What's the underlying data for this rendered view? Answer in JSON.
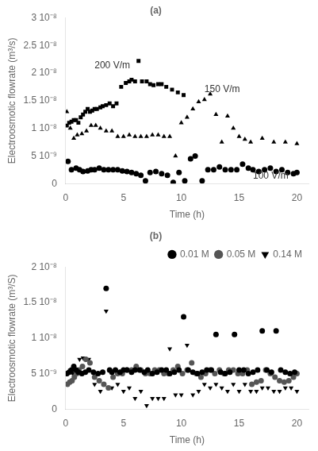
{
  "chart_data": [
    {
      "type": "scatter",
      "title": "(a)",
      "x_label": "Time (h)",
      "y_label": "Electroosmotic flowrate (m³/s)",
      "xlim": [
        0,
        21
      ],
      "xticks": [
        0,
        5,
        10,
        15,
        20
      ],
      "ylim": [
        0,
        3e-08
      ],
      "yticks": [
        0,
        {
          "value": 5e-09,
          "label": "5 10⁻⁹"
        },
        {
          "value": 1e-08,
          "label": "1 10⁻⁸"
        },
        {
          "value": 1.5e-08,
          "label": "1.5 10⁻⁸"
        },
        {
          "value": 2e-08,
          "label": "2 10⁻⁸"
        },
        {
          "value": 2.5e-08,
          "label": "2.5 10⁻⁸"
        },
        {
          "value": 3e-08,
          "label": "3 10⁻⁸"
        }
      ],
      "grid": false,
      "series": [
        {
          "marker": "square",
          "color": "#000000",
          "x": [
            0.1,
            0.3,
            0.5,
            0.7,
            0.9,
            1.1,
            1.3,
            1.5,
            1.7,
            1.9,
            2.1,
            2.3,
            2.5,
            2.7,
            3.0,
            3.2,
            3.5,
            3.8,
            4.1,
            4.4,
            4.8,
            5.2,
            5.5,
            5.7,
            6.0,
            6.3,
            6.6,
            7.0,
            7.3,
            7.6,
            8.0,
            8.3,
            8.7,
            9.2,
            9.7,
            10.2
          ],
          "values": [
            1.05e-08,
            1.1e-08,
            1.12e-08,
            1.15e-08,
            1.15e-08,
            1.1e-08,
            1.2e-08,
            1.25e-08,
            1.3e-08,
            1.35e-08,
            1.3e-08,
            1.32e-08,
            1.35e-08,
            1.35e-08,
            1.38e-08,
            1.4e-08,
            1.42e-08,
            1.45e-08,
            1.4e-08,
            1.45e-08,
            1.75e-08,
            1.82e-08,
            1.85e-08,
            1.88e-08,
            1.85e-08,
            2.22e-08,
            1.85e-08,
            1.85e-08,
            1.8e-08,
            1.78e-08,
            1.8e-08,
            1.8e-08,
            1.75e-08,
            1.7e-08,
            1.65e-08,
            1.6e-08
          ]
        },
        {
          "marker": "triangle_up",
          "color": "#000000",
          "x": [
            0.1,
            0.4,
            0.7,
            1.0,
            1.4,
            1.8,
            2.2,
            2.6,
            3.0,
            3.5,
            4.0,
            4.5,
            5.0,
            5.5,
            6.0,
            6.5,
            7.0,
            7.5,
            8.0,
            8.5,
            9.0,
            9.5,
            10.0,
            10.5,
            11.0,
            11.5,
            12.0,
            12.5,
            13.0,
            13.5,
            14.0,
            14.5,
            15.0,
            15.5,
            16.0,
            17.0,
            18.0,
            19.0,
            20.0
          ],
          "values": [
            1.3e-08,
            1e-08,
            8.2e-09,
            8.8e-09,
            9e-09,
            9.5e-09,
            1.05e-08,
            1.05e-08,
            1e-08,
            9.5e-09,
            9.5e-09,
            8.5e-09,
            8.5e-09,
            8.8e-09,
            8.5e-09,
            8.5e-09,
            8.5e-09,
            8.8e-09,
            8.8e-09,
            8.5e-09,
            8.5e-09,
            5e-09,
            1.1e-08,
            1.2e-08,
            1.35e-08,
            1.48e-08,
            1.52e-08,
            1.62e-08,
            1.25e-08,
            7.5e-09,
            1.22e-08,
            1e-08,
            8.5e-09,
            8e-09,
            7.5e-09,
            8.2e-09,
            7.5e-09,
            7.5e-09,
            7.2e-09
          ]
        },
        {
          "marker": "circle",
          "color": "#000000",
          "x": [
            0.2,
            0.5,
            0.9,
            1.2,
            1.5,
            1.9,
            2.2,
            2.5,
            2.9,
            3.3,
            3.7,
            4.1,
            4.5,
            4.9,
            5.3,
            5.7,
            6.1,
            6.5,
            6.9,
            7.3,
            7.8,
            8.3,
            8.8,
            9.3,
            9.8,
            10.3,
            10.8,
            11.2,
            11.8,
            12.3,
            12.8,
            13.3,
            13.8,
            14.3,
            14.8,
            15.3,
            15.8,
            16.2,
            16.7,
            17.2,
            17.7,
            18.2,
            18.7,
            19.2,
            19.7,
            20.0
          ],
          "values": [
            4e-09,
            2.5e-09,
            2.8e-09,
            2.5e-09,
            2.2e-09,
            2.3e-09,
            2.5e-09,
            2.5e-09,
            2.8e-09,
            2.5e-09,
            2.5e-09,
            2.5e-09,
            2.5e-09,
            2.3e-09,
            2.2e-09,
            2e-09,
            1.8e-09,
            1.5e-09,
            5e-10,
            2e-09,
            2.2e-09,
            1.8e-09,
            1.5e-09,
            2e-10,
            2e-09,
            5e-10,
            4.5e-09,
            5e-09,
            5e-10,
            2.5e-09,
            2.5e-09,
            3e-09,
            2.5e-09,
            2.5e-09,
            2.5e-09,
            3.5e-09,
            2.8e-09,
            2.5e-09,
            2.2e-09,
            2.5e-09,
            2.8e-09,
            2.2e-09,
            2.5e-09,
            2e-09,
            1.8e-09,
            2e-09
          ]
        }
      ],
      "annotations": [
        {
          "text": "200 V/m",
          "x": 2.5,
          "y": 2.05e-08
        },
        {
          "text": "150 V/m",
          "x": 12.0,
          "y": 1.62e-08
        },
        {
          "text": "100 V/m",
          "x": 16.2,
          "y": 4.5e-10
        }
      ]
    },
    {
      "type": "scatter",
      "title": "(b)",
      "x_label": "Time (h)",
      "y_label": "Electroosmotic flowrate (m³/S)",
      "xlim": [
        0,
        21
      ],
      "xticks": [
        0,
        5,
        10,
        15,
        20
      ],
      "ylim": [
        0,
        2e-08
      ],
      "yticks": [
        0,
        {
          "value": 5e-09,
          "label": "5 10⁻⁹"
        },
        {
          "value": 1e-08,
          "label": "1 10⁻⁸"
        },
        {
          "value": 1.5e-08,
          "label": "1.5 10⁻⁸"
        },
        {
          "value": 2e-08,
          "label": "2 10⁻⁸"
        }
      ],
      "grid": false,
      "legend": "upper right",
      "series": [
        {
          "name": "0.01 M",
          "marker": "circle",
          "color": "#000000",
          "x": [
            0.1,
            0.3,
            0.5,
            0.7,
            0.9,
            1.1,
            1.4,
            1.7,
            2.0,
            2.4,
            2.8,
            3.2,
            3.5,
            3.8,
            4.0,
            4.3,
            4.7,
            5.0,
            5.3,
            5.7,
            6.0,
            6.4,
            6.8,
            7.1,
            7.5,
            7.9,
            8.3,
            8.7,
            9.0,
            9.4,
            9.8,
            10.2,
            10.6,
            11.0,
            11.4,
            11.8,
            12.2,
            12.6,
            13.0,
            13.4,
            13.8,
            14.2,
            14.6,
            15.0,
            15.4,
            15.8,
            16.2,
            16.6,
            17.0,
            17.4,
            17.8,
            18.2,
            18.6,
            19.0,
            19.4,
            19.8
          ],
          "values": [
            5e-09,
            5.2e-09,
            5.5e-09,
            6e-09,
            5.5e-09,
            5.2e-09,
            5e-09,
            5.2e-09,
            5.5e-09,
            5.2e-09,
            5e-09,
            5.2e-09,
            1.7e-08,
            5.5e-09,
            5.2e-09,
            5.5e-09,
            5.2e-09,
            5.5e-09,
            5.5e-09,
            5.2e-09,
            5.5e-09,
            5.5e-09,
            5.2e-09,
            5.5e-09,
            5e-09,
            5.2e-09,
            5.5e-09,
            5.5e-09,
            5e-09,
            5.2e-09,
            5.5e-09,
            1.3e-08,
            5.5e-09,
            5.2e-09,
            5e-09,
            5.2e-09,
            5.5e-09,
            5.5e-09,
            1.05e-08,
            5.2e-09,
            5e-09,
            5.2e-09,
            1.05e-08,
            5.5e-09,
            5.5e-09,
            5e-09,
            5.2e-09,
            5.5e-09,
            1.1e-08,
            5.5e-09,
            5.2e-09,
            1.1e-08,
            5.5e-09,
            5.2e-09,
            5e-09,
            5.2e-09
          ]
        },
        {
          "name": "0.05 M",
          "marker": "circle",
          "color": "#555555",
          "x": [
            0.15,
            0.35,
            0.55,
            0.75,
            0.95,
            1.15,
            1.45,
            1.75,
            2.1,
            2.5,
            2.9,
            3.3,
            3.7,
            4.1,
            4.5,
            4.9,
            5.3,
            5.7,
            6.1,
            6.5,
            6.9,
            7.3,
            7.7,
            8.1,
            8.5,
            8.9,
            9.3,
            9.7,
            10.1,
            10.5,
            10.9,
            11.3,
            11.7,
            12.1,
            12.5,
            12.9,
            13.3,
            13.7,
            14.1,
            14.5,
            14.9,
            15.3,
            15.7,
            16.1,
            16.5,
            16.9,
            17.3,
            17.7,
            18.1,
            18.5,
            18.9,
            19.3,
            19.7,
            20.0
          ],
          "values": [
            3.5e-09,
            3.8e-09,
            4e-09,
            4.5e-09,
            5e-09,
            5.5e-09,
            6e-09,
            7e-09,
            6.5e-09,
            4.5e-09,
            4e-09,
            3.5e-09,
            3e-09,
            4.5e-09,
            5e-09,
            5e-09,
            5.5e-09,
            5.5e-09,
            6e-09,
            5.5e-09,
            5e-09,
            5e-09,
            5.5e-09,
            5.5e-09,
            5e-09,
            5e-09,
            5.5e-09,
            6e-09,
            5e-09,
            5.5e-09,
            6.5e-09,
            5e-09,
            4.5e-09,
            5e-09,
            5.5e-09,
            5e-09,
            5.5e-09,
            5e-09,
            5.5e-09,
            5.5e-09,
            5e-09,
            5e-09,
            5.5e-09,
            3.5e-09,
            3.8e-09,
            4e-09,
            5.5e-09,
            5e-09,
            4.5e-09,
            4e-09,
            3.8e-09,
            4e-09,
            4.5e-09,
            5e-09
          ]
        },
        {
          "name": "0.14 M",
          "marker": "triangle_down",
          "color": "#000000",
          "x": [
            0.2,
            0.4,
            0.6,
            0.8,
            1.0,
            1.2,
            1.5,
            2.0,
            2.5,
            3.0,
            3.5,
            4.0,
            4.5,
            5.0,
            5.5,
            6.0,
            6.5,
            7.0,
            7.5,
            8.0,
            8.5,
            9.0,
            9.5,
            10.0,
            10.5,
            11.0,
            11.5,
            12.0,
            12.5,
            13.0,
            13.5,
            14.0,
            14.5,
            15.0,
            15.5,
            16.0,
            16.5,
            17.0,
            17.5,
            18.0,
            18.5,
            19.0,
            19.5,
            20.0
          ],
          "values": [
            5e-09,
            5.5e-09,
            5e-09,
            4.5e-09,
            5.5e-09,
            7e-09,
            7.2e-09,
            7e-09,
            3.5e-09,
            2.5e-09,
            1.38e-08,
            3e-09,
            3.5e-09,
            2.5e-09,
            3e-09,
            1.5e-09,
            2.5e-09,
            5e-10,
            1.5e-09,
            1.5e-09,
            1.5e-09,
            8.5e-09,
            2e-09,
            2e-09,
            9e-09,
            2e-09,
            2.5e-09,
            3.5e-09,
            3e-09,
            3.5e-09,
            3e-09,
            2.5e-09,
            3.5e-09,
            2.5e-09,
            3.5e-09,
            2.5e-09,
            2.5e-09,
            3e-09,
            3e-09,
            2.5e-09,
            2.5e-09,
            3e-09,
            3e-09,
            2.5e-09
          ]
        }
      ]
    }
  ]
}
